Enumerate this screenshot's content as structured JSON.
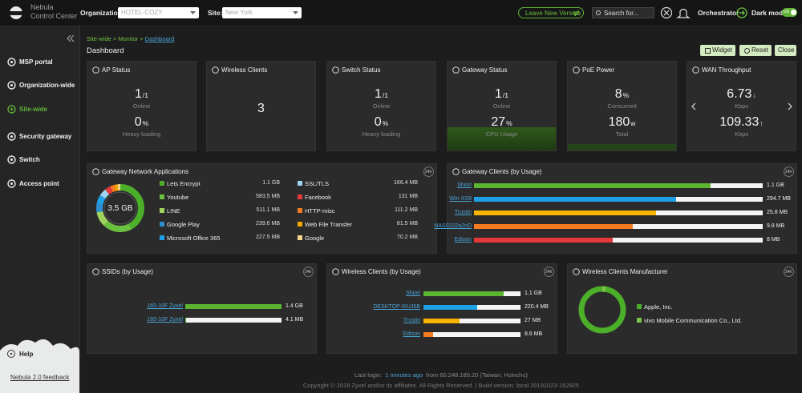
{
  "header": {
    "brand": "Nebula",
    "brand_sub": "Control Center",
    "org_label": "Organization:",
    "org_value": "HOTEL-COZY",
    "site_label": "Site:",
    "site_value": "New York",
    "leave_button": "Leave New Version",
    "search_placeholder": "Search for...",
    "orchestrator": "Orchestrator",
    "dark_mode": "Dark mode",
    "toggle": "on"
  },
  "sidebar": {
    "items": [
      "MSP portal",
      "Organization-wide",
      "Site-wide",
      "Security gateway",
      "Switch",
      "Access point"
    ],
    "help": "Help",
    "feedback": "Nebula 2.0 feedback"
  },
  "breadcrumb": {
    "items": [
      "Site-wide",
      "Monitor",
      "Dashboard"
    ],
    "separator": ">"
  },
  "page_title": "Dashboard",
  "buttons": [
    "Widget",
    "Reset",
    "Close"
  ],
  "badge": "24h",
  "status_cards": [
    {
      "title": "AP Status",
      "stats": [
        {
          "value": 1,
          "unit": "/1",
          "caption": "Online"
        },
        {
          "value": 0,
          "unit": "%",
          "caption": "Heavy loading"
        }
      ]
    },
    {
      "title": "Wireless Clients",
      "stats": [
        {
          "value": 3
        }
      ]
    },
    {
      "title": "Switch Status",
      "stats": [
        {
          "value": 1,
          "unit": "/1",
          "caption": "Online"
        },
        {
          "value": 0,
          "unit": "%",
          "caption": "Heavy loading"
        }
      ]
    },
    {
      "title": "Gateway Status",
      "stats": [
        {
          "value": 1,
          "unit": "/1",
          "caption": "Online"
        },
        {
          "value": 27,
          "unit": "%",
          "caption": "CPU Usage"
        }
      ]
    },
    {
      "title": "PoE Power",
      "stats": [
        {
          "value": 8,
          "unit": "%",
          "caption": "Consumed"
        },
        {
          "value": 180,
          "unit": "w",
          "caption": "Total"
        }
      ]
    },
    {
      "title": "WAN Throughput",
      "stats": [
        {
          "value": 6.73,
          "unit": "↓",
          "caption": "Kbps"
        },
        {
          "value": 109.33,
          "unit": "↑",
          "caption": "Kbps"
        }
      ]
    }
  ],
  "gateway_apps": {
    "title": "Gateway Network Applications",
    "total": "3.5 GB",
    "items": [
      {
        "name": "Lets Encrypt",
        "usage": "1.1 GB",
        "color": "#4caf2a"
      },
      {
        "name": "Youtube",
        "usage": "583.5 MB",
        "color": "#6cc040"
      },
      {
        "name": "LINE",
        "usage": "511.1 MB",
        "color": "#9ed35e"
      },
      {
        "name": "Google Play",
        "usage": "239.6 MB",
        "color": "#2e8fd0"
      },
      {
        "name": "Microsoft Office 365",
        "usage": "227.5 MB",
        "color": "#1ea1e6"
      },
      {
        "name": "SSL/TLS",
        "usage": "166.4 MB",
        "color": "#9fd4f2"
      },
      {
        "name": "Facebook",
        "usage": "131 MB",
        "color": "#e63939"
      },
      {
        "name": "HTTP-misc",
        "usage": "111.2 MB",
        "color": "#f57c20"
      },
      {
        "name": "Web File Transfer",
        "usage": "81.5 MB",
        "color": "#f6a800"
      },
      {
        "name": "Google",
        "usage": "70.2 MB",
        "color": "#f7d58a"
      }
    ]
  },
  "gateway_clients": {
    "title": "Gateway Clients (by Usage)",
    "items": [
      {
        "name": "Shiori",
        "usage": "1.1 GB",
        "color": "#5cb531"
      },
      {
        "name": "Win-XS9",
        "usage": "294.7 MB",
        "color": "#1ea1e6"
      },
      {
        "name": "Trustin",
        "usage": "25.8 MB",
        "color": "#f6b400"
      },
      {
        "name": "NAS0202a2nD",
        "usage": "9.8 MB",
        "color": "#f57c20"
      },
      {
        "name": "Edison",
        "usage": "8 MB",
        "color": "#e63939"
      }
    ]
  },
  "ssids": {
    "title": "SSIDs (by Usage)",
    "items": [
      {
        "name": "165-10F Zyxel",
        "usage": "1.4 GB",
        "color": "#5cb531"
      },
      {
        "name": "165-10F Zyxel",
        "usage": "4.1 MB",
        "color": "#5cb531"
      }
    ]
  },
  "wireless_clients": {
    "title": "Wireless Clients (by Usage)",
    "items": [
      {
        "name": "Shiori",
        "usage": "1.1 GB",
        "color": "#5cb531"
      },
      {
        "name": "DESKTOP-5IUJ6B",
        "usage": "220.4 MB",
        "color": "#1ea1e6"
      },
      {
        "name": "Trustin",
        "usage": "27 MB",
        "color": "#f6b400"
      },
      {
        "name": "Edison",
        "usage": "8.6 MB",
        "color": "#f57c20"
      }
    ]
  },
  "manufacturer": {
    "title": "Wireless Clients Manufacturer",
    "items": [
      {
        "name": "Apple, Inc.",
        "color": "#4caf2a"
      },
      {
        "name": "vivo Mobile Communication Co., Ltd.",
        "color": "#7cc34a"
      }
    ]
  },
  "footer": {
    "last_login": "Last login:",
    "ago": "1 minutes ago",
    "from": "from 60.248.185.20 (Taiwan, Hsinchu)",
    "copyright": "Copyright © 2019 Zyxel and/or its affiliates. All Rights Reserved. | Build version: local 20191023-162925"
  }
}
